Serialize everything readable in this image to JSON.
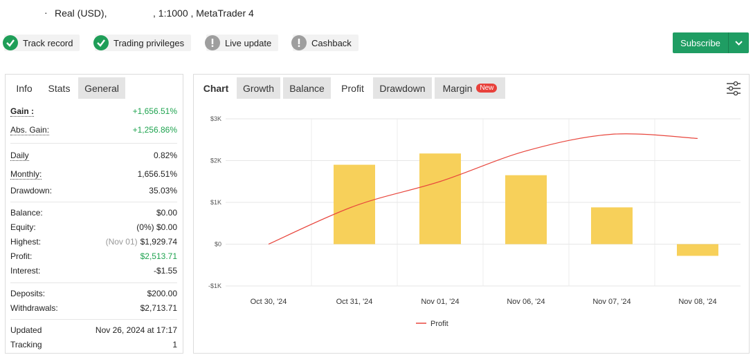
{
  "header": {
    "bullet": "·",
    "account": "Real (USD),",
    "details": ", 1:1000 , MetaTrader 4"
  },
  "badges": [
    {
      "label": "Track record",
      "status": "ok"
    },
    {
      "label": "Trading privileges",
      "status": "ok"
    },
    {
      "label": "Live update",
      "status": "warn"
    },
    {
      "label": "Cashback",
      "status": "warn"
    }
  ],
  "subscribe": "Subscribe",
  "left_tabs": {
    "items": [
      "Info",
      "Stats",
      "General"
    ],
    "active": 1
  },
  "stats": [
    [
      {
        "label": "Gain :",
        "value": "+1,656.51%",
        "tone": "green",
        "strong": true,
        "dotted": true
      },
      {
        "label": "Abs. Gain:",
        "value": "+1,256.86%",
        "tone": "green",
        "dotted": true
      }
    ],
    [
      {
        "label": "Daily",
        "value": "0.82%",
        "dotted": true
      },
      {
        "label": "Monthly:",
        "value": "1,656.51%",
        "dotted": true
      },
      {
        "label": "Drawdown:",
        "value": "35.03%"
      }
    ],
    [
      {
        "label": "Balance:",
        "value": "$0.00"
      },
      {
        "label": "Equity:",
        "value": "(0%) $0.00"
      },
      {
        "label": "Highest:",
        "note": "(Nov 01)",
        "value": "$1,929.74"
      },
      {
        "label": "Profit:",
        "value": "$2,513.71",
        "tone": "green"
      },
      {
        "label": "Interest:",
        "value": "-$1.55"
      }
    ],
    [
      {
        "label": "Deposits:",
        "value": "$200.00"
      },
      {
        "label": "Withdrawals:",
        "value": "$2,713.71"
      }
    ],
    [
      {
        "label": "Updated",
        "value": "Nov 26, 2024 at 17:17"
      },
      {
        "label": "Tracking",
        "value": "1"
      }
    ]
  ],
  "chart_tabs": {
    "heading": "Chart",
    "items": [
      "Growth",
      "Balance",
      "Profit",
      "Drawdown",
      "Margin"
    ],
    "active": 2,
    "new_badge": "New"
  },
  "chart_data": {
    "type": "bar",
    "categories": [
      "Oct 30, '24",
      "Oct 31, '24",
      "Nov 01, '24",
      "Nov 06, '24",
      "Nov 07, '24",
      "Nov 08, '24"
    ],
    "series": [
      {
        "type": "bar",
        "color": "#f7d05a",
        "values": [
          null,
          1900,
          2170,
          1650,
          880,
          -280
        ]
      },
      {
        "type": "line",
        "name": "Profit",
        "color": "#e8453c",
        "values": [
          0,
          910,
          1500,
          2230,
          2630,
          2530
        ]
      }
    ],
    "ylim": [
      -1000,
      3000
    ],
    "yticks": [
      {
        "value": -1000,
        "label": "-$1K"
      },
      {
        "value": 0,
        "label": "$0"
      },
      {
        "value": 1000,
        "label": "$1K"
      },
      {
        "value": 2000,
        "label": "$2K"
      },
      {
        "value": 3000,
        "label": "$3K"
      }
    ],
    "grid": true,
    "legend": "bottom"
  }
}
